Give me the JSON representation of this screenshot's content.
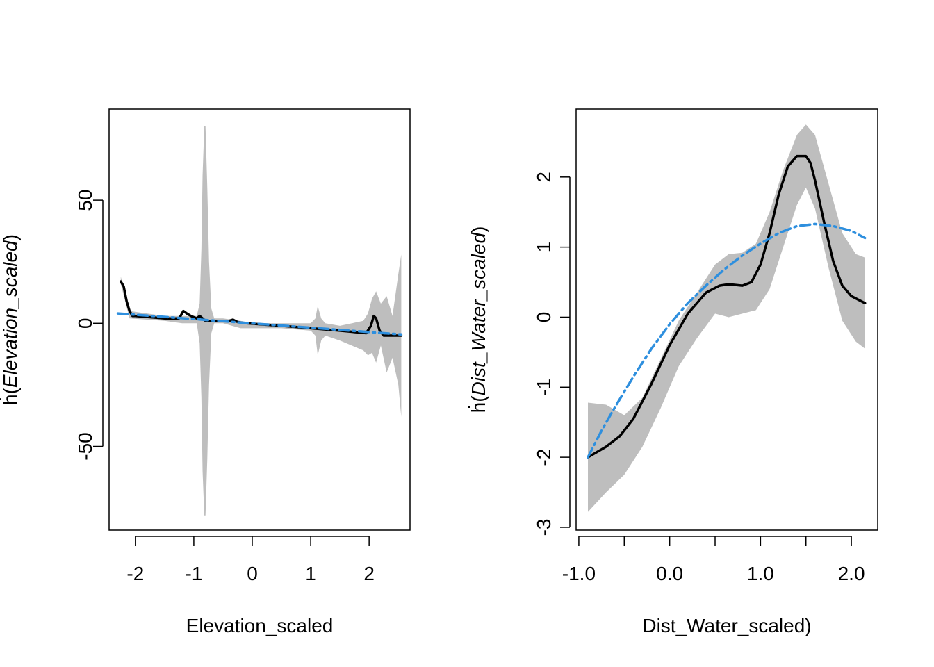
{
  "chart_data": [
    {
      "type": "line",
      "xlabel": "Elevation_scaled",
      "ylabel_prefix": "ḣ(",
      "ylabel_var": "Elevation_scaled",
      "ylabel_suffix": ")",
      "xlim": [
        -2.45,
        2.7
      ],
      "ylim": [
        -84,
        87
      ],
      "xticks": [
        -2,
        -1,
        0,
        1,
        2
      ],
      "xtick_labels": [
        "-2",
        "-1",
        "0",
        "1",
        "2"
      ],
      "yticks": [
        -50,
        0,
        50
      ],
      "ytick_labels": [
        "-50",
        "0",
        "50"
      ],
      "grid": false,
      "series": [
        {
          "role": "confidence band",
          "color": "#BEBEBE",
          "x": [
            -2.25,
            -2.1,
            -1.5,
            -1.2,
            -1.0,
            -0.95,
            -0.9,
            -0.87,
            -0.85,
            -0.82,
            -0.8,
            -0.77,
            -0.74,
            -0.7,
            -0.65,
            -0.5,
            -0.2,
            0.0,
            0.5,
            1.0,
            1.08,
            1.12,
            1.18,
            1.25,
            1.5,
            1.9,
            1.98,
            2.05,
            2.12,
            2.2,
            2.3,
            2.4,
            2.5,
            2.55
          ],
          "upper": [
            19,
            5,
            3,
            3,
            3,
            3,
            8,
            30,
            60,
            80,
            80,
            55,
            25,
            6,
            2,
            2,
            1,
            0,
            0,
            0,
            2,
            7,
            2,
            0,
            -1,
            1,
            4,
            10,
            13,
            8,
            11,
            3,
            20,
            28
          ],
          "lower": [
            16,
            2,
            1,
            0,
            0,
            0,
            -8,
            -30,
            -60,
            -78,
            -78,
            -55,
            -25,
            -4,
            0,
            0,
            -2,
            -2,
            -2,
            -3,
            -5,
            -13,
            -7,
            -5,
            -7,
            -11,
            -13,
            -12,
            -16,
            -9,
            -20,
            -14,
            -25,
            -38
          ]
        },
        {
          "name": "estimate",
          "color": "#000000",
          "style": "solid",
          "x": [
            -2.25,
            -2.2,
            -2.15,
            -2.1,
            -2.05,
            -2.0,
            -1.5,
            -1.25,
            -1.18,
            -1.12,
            -1.05,
            -0.95,
            -0.9,
            -0.85,
            -0.8,
            -0.75,
            -0.6,
            -0.4,
            -0.33,
            -0.25,
            -0.1,
            0.5,
            1.0,
            1.5,
            1.95,
            2.03,
            2.08,
            2.12,
            2.18,
            2.25,
            2.55
          ],
          "y": [
            17,
            15,
            9,
            5,
            3,
            3,
            2,
            2,
            5,
            4,
            3,
            2,
            3,
            2,
            1,
            1,
            1,
            1,
            1.5,
            0.5,
            0,
            -1,
            -2,
            -3,
            -4,
            -1,
            3,
            2,
            -3,
            -5,
            -5
          ]
        },
        {
          "name": "fit",
          "color": "#2E8FDE",
          "style": "dashdot",
          "x": [
            -2.3,
            2.55
          ],
          "y": [
            4,
            -4.5
          ]
        }
      ]
    },
    {
      "type": "line",
      "xlabel": "Dist_Water_scaled)",
      "ylabel_prefix": "ḣ(",
      "ylabel_var": "Dist_Water_scaled",
      "ylabel_suffix": ")",
      "xlim": [
        -1.03,
        2.29
      ],
      "ylim": [
        -3.04,
        2.97
      ],
      "xticks": [
        -1.0,
        -0.5,
        0.0,
        0.5,
        1.0,
        1.5,
        2.0
      ],
      "xtick_labels": [
        "-1.0",
        "",
        "0.0",
        "",
        "1.0",
        "",
        "2.0"
      ],
      "yticks": [
        -3,
        -2,
        -1,
        0,
        1,
        2
      ],
      "ytick_labels": [
        "-3",
        "-2",
        "-1",
        "0",
        "1",
        "2"
      ],
      "grid": false,
      "series": [
        {
          "role": "confidence band",
          "color": "#BEBEBE",
          "x": [
            -0.9,
            -0.7,
            -0.5,
            -0.3,
            -0.1,
            0.1,
            0.3,
            0.5,
            0.65,
            0.8,
            0.95,
            1.1,
            1.25,
            1.4,
            1.5,
            1.6,
            1.75,
            1.9,
            2.05,
            2.15
          ],
          "upper": [
            -1.22,
            -1.25,
            -1.4,
            -1.15,
            -0.6,
            -0.05,
            0.35,
            0.75,
            0.9,
            0.92,
            1.05,
            1.5,
            2.1,
            2.6,
            2.75,
            2.6,
            1.9,
            1.2,
            0.9,
            0.85
          ],
          "lower": [
            -2.78,
            -2.5,
            -2.25,
            -1.85,
            -1.3,
            -0.7,
            -0.3,
            0.05,
            0.0,
            0.05,
            0.1,
            0.4,
            1.0,
            1.6,
            1.85,
            1.55,
            0.7,
            -0.05,
            -0.35,
            -0.45
          ]
        },
        {
          "name": "estimate",
          "color": "#000000",
          "style": "solid",
          "x": [
            -0.9,
            -0.7,
            -0.55,
            -0.4,
            -0.2,
            0.0,
            0.2,
            0.4,
            0.55,
            0.65,
            0.8,
            0.9,
            1.0,
            1.1,
            1.2,
            1.3,
            1.4,
            1.5,
            1.55,
            1.6,
            1.7,
            1.8,
            1.9,
            2.0,
            2.15
          ],
          "y": [
            -2.0,
            -1.85,
            -1.7,
            -1.45,
            -0.95,
            -0.4,
            0.05,
            0.35,
            0.45,
            0.47,
            0.45,
            0.5,
            0.75,
            1.2,
            1.75,
            2.15,
            2.3,
            2.3,
            2.2,
            1.95,
            1.35,
            0.8,
            0.45,
            0.3,
            0.2
          ]
        },
        {
          "name": "fit",
          "color": "#2E8FDE",
          "style": "dashdot",
          "x": [
            -0.9,
            -0.75,
            -0.6,
            -0.4,
            -0.2,
            0.0,
            0.2,
            0.4,
            0.6,
            0.8,
            1.0,
            1.2,
            1.4,
            1.6,
            1.8,
            2.0,
            2.15
          ],
          "y": [
            -2.0,
            -1.62,
            -1.28,
            -0.85,
            -0.45,
            -0.1,
            0.2,
            0.45,
            0.68,
            0.88,
            1.05,
            1.2,
            1.3,
            1.33,
            1.3,
            1.23,
            1.13
          ]
        }
      ]
    }
  ]
}
